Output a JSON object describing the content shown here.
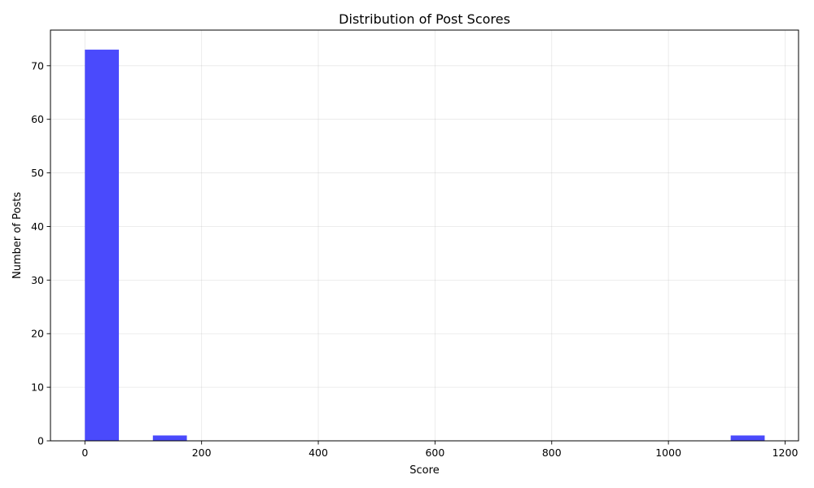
{
  "chart_data": {
    "type": "bar",
    "title": "Distribution of Post Scores",
    "xlabel": "Score",
    "ylabel": "Number of Posts",
    "xlim": [
      -59,
      1223
    ],
    "ylim": [
      0,
      76.65
    ],
    "xticks": [
      0,
      200,
      400,
      600,
      800,
      1000,
      1200
    ],
    "yticks": [
      0,
      10,
      20,
      30,
      40,
      50,
      60,
      70
    ],
    "grid": true,
    "bar_color": "#4a4afc",
    "bins": [
      {
        "x0": 0,
        "x1": 58.25,
        "count": 73
      },
      {
        "x0": 116.5,
        "x1": 174.75,
        "count": 1
      },
      {
        "x0": 1106.75,
        "x1": 1165,
        "count": 1
      }
    ]
  }
}
